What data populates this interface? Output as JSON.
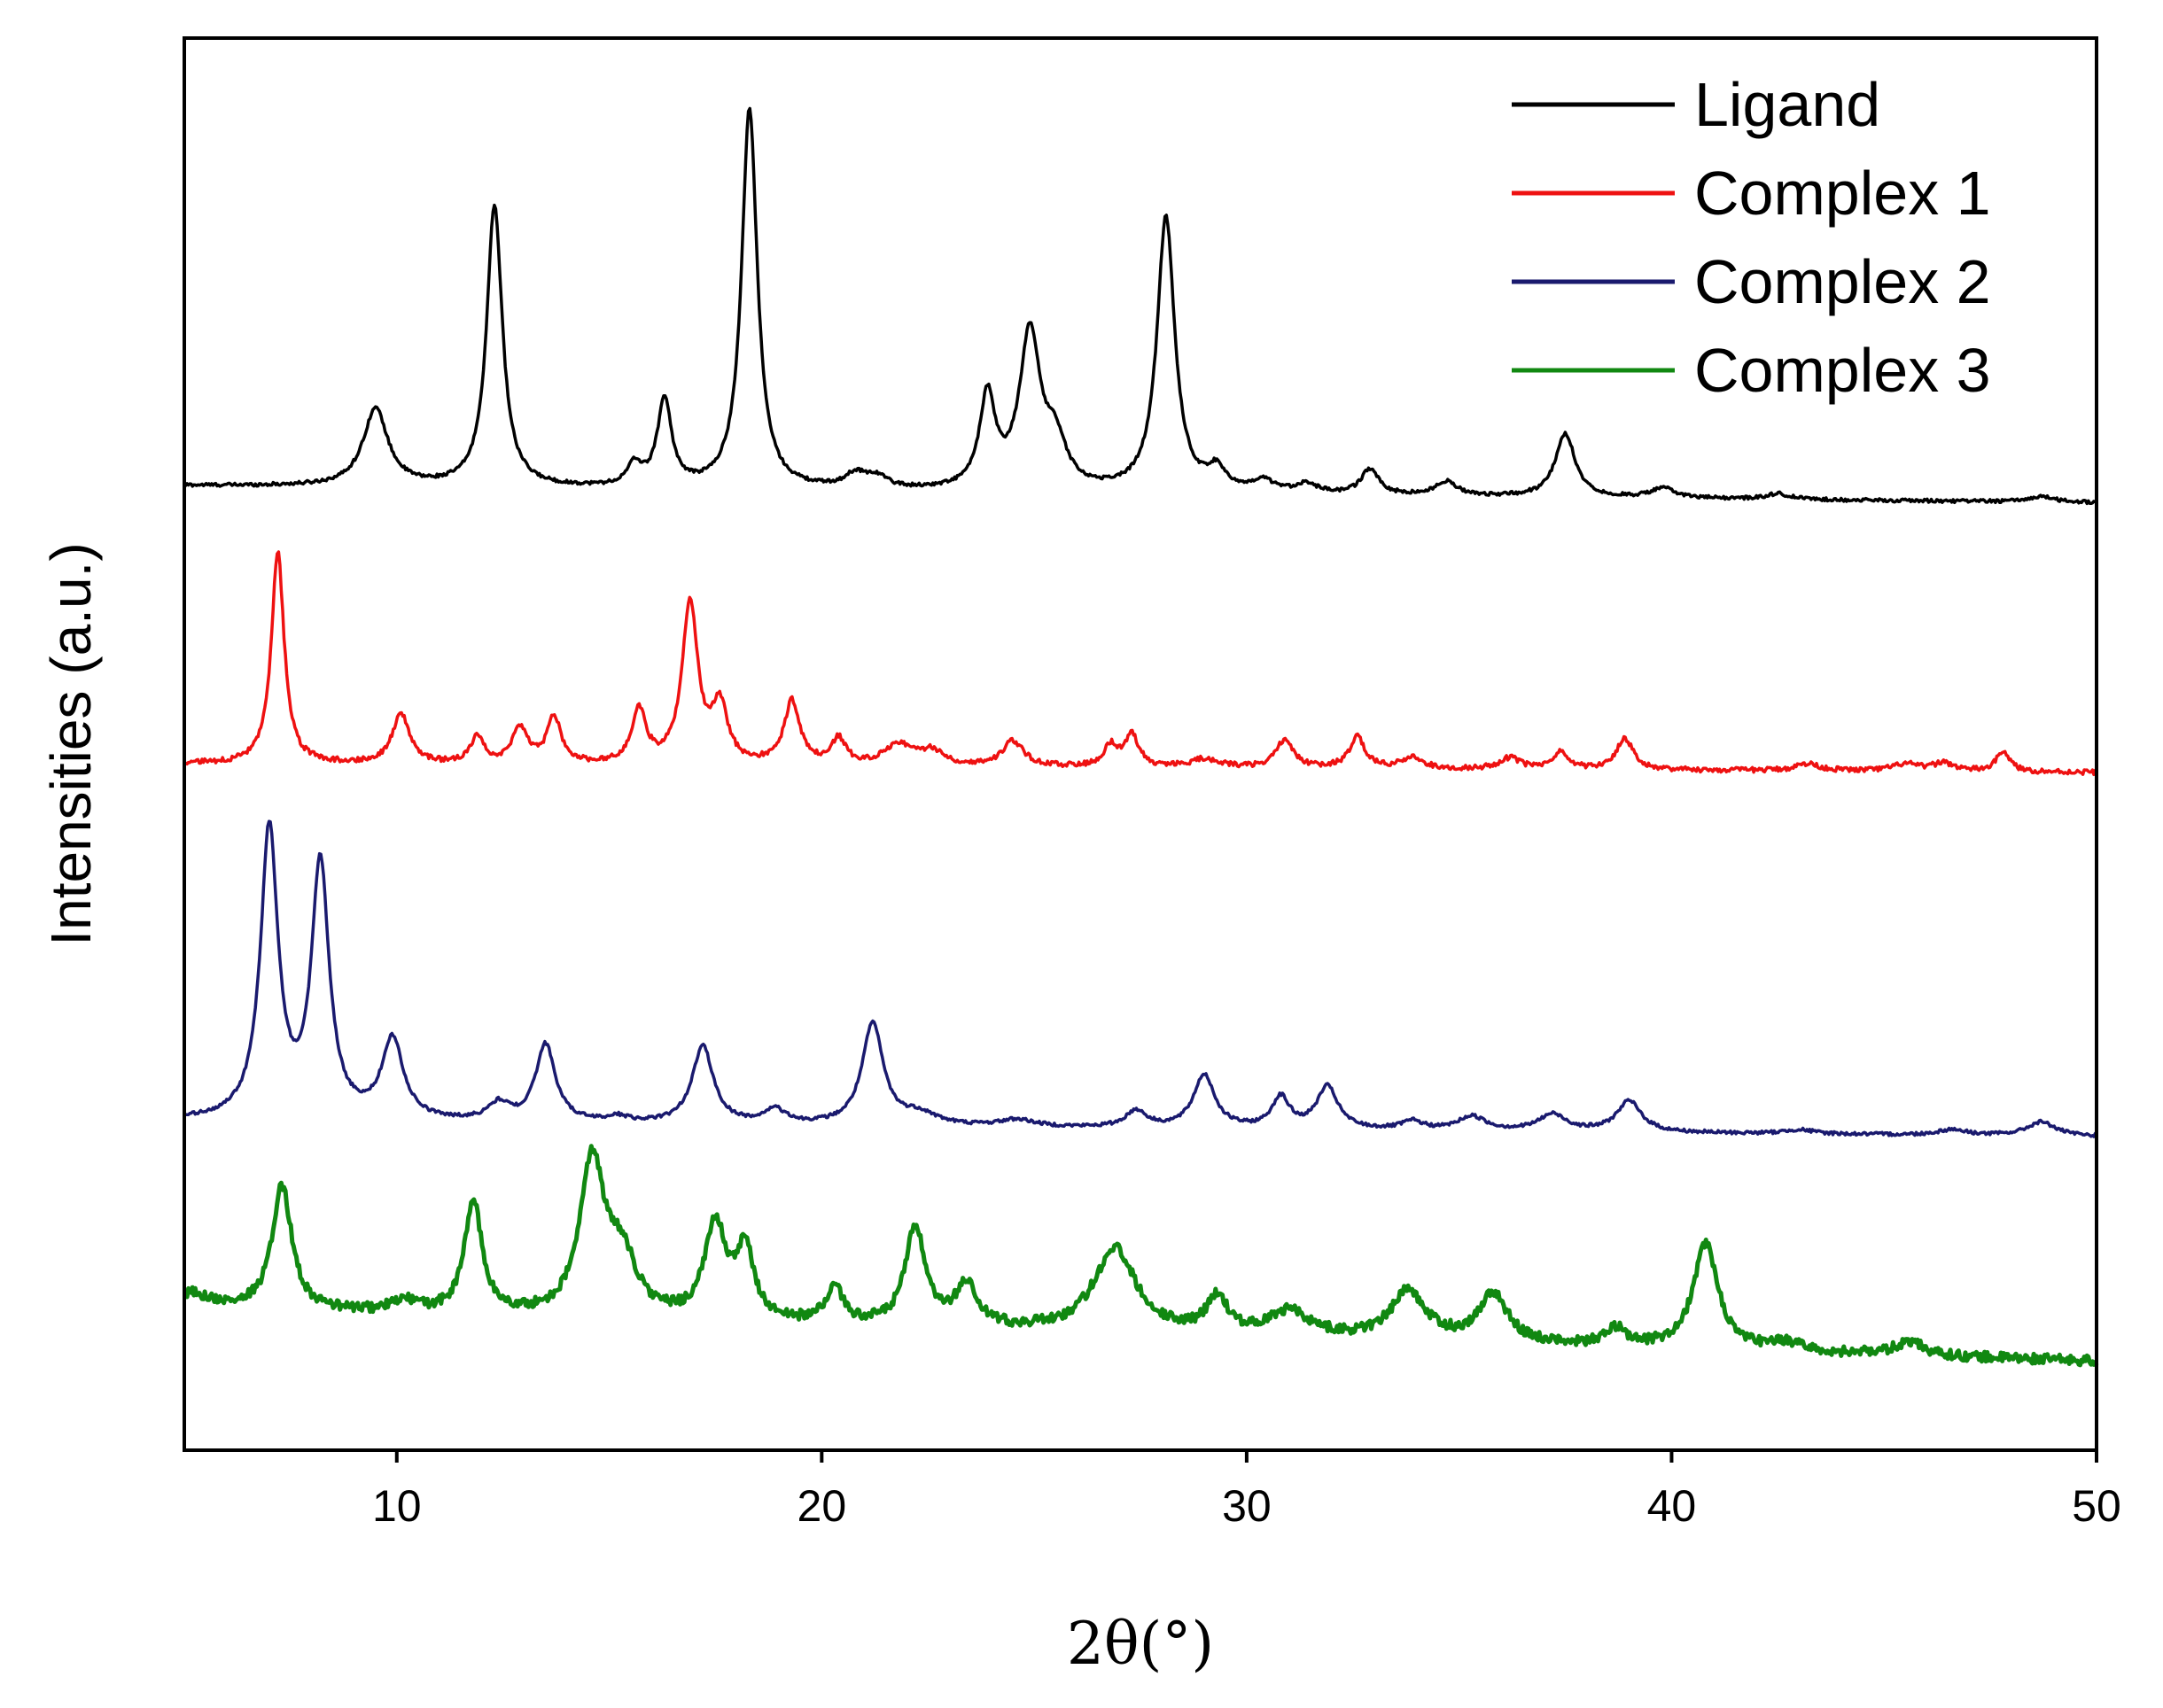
{
  "chart_data": {
    "type": "line",
    "xlabel": "2θ(°)",
    "ylabel": "Intensities (a.u.)",
    "xlim": [
      5,
      50
    ],
    "ylim": [
      0,
      1
    ],
    "x_ticks": [
      10,
      20,
      30,
      40,
      50
    ],
    "y_ticks_shown": false,
    "grid": false,
    "legend_position": "top-right",
    "series": [
      {
        "name": "Ligand",
        "color": "#000000",
        "baseline_start": 0.683,
        "baseline_end": 0.671,
        "peaks": [
          {
            "x": 9.5,
            "height": 0.055,
            "width": 0.35
          },
          {
            "x": 12.3,
            "height": 0.2,
            "width": 0.22
          },
          {
            "x": 15.6,
            "height": 0.015,
            "width": 0.2
          },
          {
            "x": 16.3,
            "height": 0.062,
            "width": 0.2
          },
          {
            "x": 18.3,
            "height": 0.27,
            "width": 0.22
          },
          {
            "x": 20.8,
            "height": 0.01,
            "width": 0.3
          },
          {
            "x": 21.3,
            "height": 0.008,
            "width": 0.3
          },
          {
            "x": 23.9,
            "height": 0.065,
            "width": 0.22
          },
          {
            "x": 24.9,
            "height": 0.11,
            "width": 0.3
          },
          {
            "x": 25.5,
            "height": 0.03,
            "width": 0.3
          },
          {
            "x": 28.1,
            "height": 0.195,
            "width": 0.25
          },
          {
            "x": 29.3,
            "height": 0.015,
            "width": 0.25
          },
          {
            "x": 30.4,
            "height": 0.008,
            "width": 0.3
          },
          {
            "x": 31.4,
            "height": 0.007,
            "width": 0.3
          },
          {
            "x": 32.9,
            "height": 0.018,
            "width": 0.25
          },
          {
            "x": 34.7,
            "height": 0.01,
            "width": 0.3
          },
          {
            "x": 37.5,
            "height": 0.045,
            "width": 0.28
          },
          {
            "x": 39.8,
            "height": 0.007,
            "width": 0.35
          },
          {
            "x": 42.5,
            "height": 0.004,
            "width": 0.35
          },
          {
            "x": 48.7,
            "height": 0.004,
            "width": 0.35
          }
        ]
      },
      {
        "name": "Complex 1",
        "color": "#ee1111",
        "baseline_start": 0.486,
        "baseline_end": 0.48,
        "peaks": [
          {
            "x": 7.2,
            "height": 0.15,
            "width": 0.18
          },
          {
            "x": 10.1,
            "height": 0.035,
            "width": 0.25
          },
          {
            "x": 11.9,
            "height": 0.02,
            "width": 0.18
          },
          {
            "x": 12.9,
            "height": 0.025,
            "width": 0.22
          },
          {
            "x": 13.7,
            "height": 0.033,
            "width": 0.2
          },
          {
            "x": 15.7,
            "height": 0.038,
            "width": 0.2
          },
          {
            "x": 16.9,
            "height": 0.115,
            "width": 0.22
          },
          {
            "x": 17.6,
            "height": 0.04,
            "width": 0.22
          },
          {
            "x": 19.3,
            "height": 0.045,
            "width": 0.22
          },
          {
            "x": 20.4,
            "height": 0.018,
            "width": 0.2
          },
          {
            "x": 21.8,
            "height": 0.015,
            "width": 0.4
          },
          {
            "x": 22.6,
            "height": 0.01,
            "width": 0.35
          },
          {
            "x": 24.5,
            "height": 0.018,
            "width": 0.3
          },
          {
            "x": 26.8,
            "height": 0.015,
            "width": 0.2
          },
          {
            "x": 27.3,
            "height": 0.022,
            "width": 0.2
          },
          {
            "x": 29.0,
            "height": 0.006,
            "width": 0.4
          },
          {
            "x": 30.9,
            "height": 0.02,
            "width": 0.25
          },
          {
            "x": 32.6,
            "height": 0.022,
            "width": 0.22
          },
          {
            "x": 33.9,
            "height": 0.008,
            "width": 0.3
          },
          {
            "x": 36.2,
            "height": 0.008,
            "width": 0.3
          },
          {
            "x": 37.4,
            "height": 0.012,
            "width": 0.2
          },
          {
            "x": 38.9,
            "height": 0.022,
            "width": 0.25
          },
          {
            "x": 43.2,
            "height": 0.005,
            "width": 0.35
          },
          {
            "x": 45.5,
            "height": 0.005,
            "width": 0.35
          },
          {
            "x": 46.4,
            "height": 0.006,
            "width": 0.3
          },
          {
            "x": 47.8,
            "height": 0.015,
            "width": 0.18
          }
        ]
      },
      {
        "name": "Complex 2",
        "color": "#1a1a6e",
        "baseline_start": 0.233,
        "baseline_end": 0.222,
        "peaks": [
          {
            "x": 7.0,
            "height": 0.205,
            "width": 0.25
          },
          {
            "x": 8.2,
            "height": 0.18,
            "width": 0.25
          },
          {
            "x": 9.9,
            "height": 0.057,
            "width": 0.3
          },
          {
            "x": 12.4,
            "height": 0.012,
            "width": 0.3
          },
          {
            "x": 13.5,
            "height": 0.055,
            "width": 0.28
          },
          {
            "x": 15.2,
            "height": 0.004,
            "width": 0.3
          },
          {
            "x": 17.2,
            "height": 0.055,
            "width": 0.3
          },
          {
            "x": 18.9,
            "height": 0.01,
            "width": 0.3
          },
          {
            "x": 21.2,
            "height": 0.072,
            "width": 0.3
          },
          {
            "x": 22.3,
            "height": 0.008,
            "width": 0.5
          },
          {
            "x": 24.6,
            "height": 0.005,
            "width": 0.5
          },
          {
            "x": 27.4,
            "height": 0.012,
            "width": 0.3
          },
          {
            "x": 29.0,
            "height": 0.038,
            "width": 0.3
          },
          {
            "x": 30.8,
            "height": 0.022,
            "width": 0.25
          },
          {
            "x": 31.9,
            "height": 0.03,
            "width": 0.3
          },
          {
            "x": 33.9,
            "height": 0.006,
            "width": 0.3
          },
          {
            "x": 35.3,
            "height": 0.01,
            "width": 0.4
          },
          {
            "x": 37.2,
            "height": 0.012,
            "width": 0.4
          },
          {
            "x": 39.0,
            "height": 0.022,
            "width": 0.35
          },
          {
            "x": 43.0,
            "height": 0.003,
            "width": 0.4
          },
          {
            "x": 46.6,
            "height": 0.004,
            "width": 0.4
          },
          {
            "x": 48.7,
            "height": 0.01,
            "width": 0.4
          }
        ]
      },
      {
        "name": "Complex 3",
        "color": "#118811",
        "baseline_start": 0.1,
        "baseline_end": 0.063,
        "peaks": [
          {
            "x": 5.2,
            "height": 0.01,
            "width": 0.5
          },
          {
            "x": 7.3,
            "height": 0.088,
            "width": 0.28
          },
          {
            "x": 10.2,
            "height": 0.008,
            "width": 0.4
          },
          {
            "x": 11.8,
            "height": 0.08,
            "width": 0.25
          },
          {
            "x": 14.6,
            "height": 0.11,
            "width": 0.35
          },
          {
            "x": 15.3,
            "height": 0.04,
            "width": 0.4
          },
          {
            "x": 17.5,
            "height": 0.068,
            "width": 0.3
          },
          {
            "x": 18.2,
            "height": 0.048,
            "width": 0.25
          },
          {
            "x": 20.3,
            "height": 0.025,
            "width": 0.25
          },
          {
            "x": 22.2,
            "height": 0.07,
            "width": 0.28
          },
          {
            "x": 23.4,
            "height": 0.03,
            "width": 0.3
          },
          {
            "x": 26.9,
            "height": 0.06,
            "width": 0.6
          },
          {
            "x": 29.3,
            "height": 0.025,
            "width": 0.3
          },
          {
            "x": 31.0,
            "height": 0.018,
            "width": 0.6
          },
          {
            "x": 33.8,
            "height": 0.035,
            "width": 0.5
          },
          {
            "x": 35.8,
            "height": 0.035,
            "width": 0.4
          },
          {
            "x": 38.7,
            "height": 0.012,
            "width": 0.3
          },
          {
            "x": 40.8,
            "height": 0.075,
            "width": 0.35
          },
          {
            "x": 42.7,
            "height": 0.006,
            "width": 0.4
          },
          {
            "x": 45.6,
            "height": 0.01,
            "width": 0.4
          }
        ]
      }
    ]
  }
}
